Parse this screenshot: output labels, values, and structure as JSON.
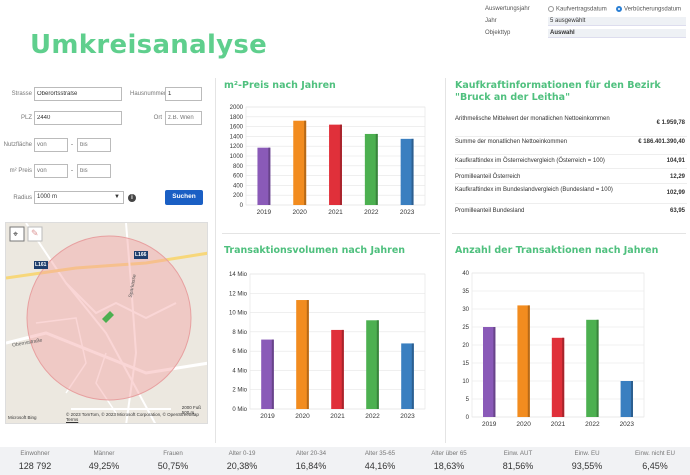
{
  "page": {
    "title": "Umkreisanalyse"
  },
  "filters": {
    "auswertungsjahr_label": "Auswertungsjahr",
    "option_kaufvertrag": "Kaufvertragsdatum",
    "option_verbuecherung": "Verbücherungsdatum",
    "selected_option": "Verbücherungsdatum",
    "jahr_label": "Jahr",
    "jahr_value": "5 ausgewählt",
    "objekttyp_label": "Objekttyp",
    "objekttyp_value": "Auswahl"
  },
  "form": {
    "strasse_label": "Strasse",
    "strasse_value": "Oberortsstraße",
    "hausnummer_label": "Hausnummer",
    "hausnummer_value": "1",
    "plz_label": "PLZ",
    "plz_value": "2440",
    "ort_label": "Ort",
    "ort_placeholder": "z.B. Wien",
    "nutzflaeche_label": "Nutzfläche",
    "preis_label": "m² Preis",
    "von_placeholder": "von",
    "bis_placeholder": "bis",
    "radius_label": "Radius",
    "radius_value": "1000 m",
    "search_label": "Suchen",
    "info_glyph": "i"
  },
  "map": {
    "road_labels": [
      "L161",
      "L166",
      "Obernsstraße",
      "Sparkasse"
    ],
    "copyright": "© 2023 TomTom, © 2023 Microsoft Corporation, © OpenStreetMap",
    "terms": "Terms",
    "scale_ft": "2000 Fuß",
    "scale_m": "500 m",
    "brand": "Microsoft Bing"
  },
  "panels": {
    "preis_title": "m²-Preis nach Jahren",
    "kaufkraft_title": "Kaufkraftinformationen für den Bezirk \"Bruck an der Leitha\"",
    "transaktionsvolumen_title": "Transaktionsvolumen nach Jahren",
    "anzahl_title": "Anzahl der Transaktionen nach Jahren"
  },
  "kaufkraft": [
    {
      "label": "Arithmelische Mittelwert der monatlichen Nettoeinkommen",
      "value": "€ 1.959,78"
    },
    {
      "label": "Summe der monatlichen Nettoeinkommen",
      "value": "€ 186.401.390,40"
    },
    {
      "label": "Kaufkraftindex im Österreichvergleich (Österreich = 100)",
      "value": "104,91"
    },
    {
      "label": "Promilleanteil Österreich",
      "value": "12,29"
    },
    {
      "label": "Kaufkraftindex im Bundeslandvergleich (Bundesland = 100)",
      "value": "102,99"
    },
    {
      "label": "Promilleanteil Bundesland",
      "value": "63,95"
    }
  ],
  "chart_data": [
    {
      "type": "bar",
      "title": "m²-Preis nach Jahren",
      "categories": [
        "2019",
        "2020",
        "2021",
        "2022",
        "2023"
      ],
      "values": [
        1170,
        1720,
        1640,
        1450,
        1350
      ],
      "ylim": [
        0,
        2000
      ],
      "yticks": [
        "0",
        "200",
        "400",
        "600",
        "800",
        "1000",
        "1200",
        "1400",
        "1600",
        "1800",
        "2000"
      ],
      "colors": [
        "#8a5ab8",
        "#f28c1f",
        "#e0303a",
        "#4cb050",
        "#3a7fc0"
      ],
      "grid": true
    },
    {
      "type": "bar",
      "title": "Transaktionsvolumen nach Jahren",
      "categories": [
        "2019",
        "2020",
        "2021",
        "2022",
        "2023"
      ],
      "values": [
        7.2,
        11.3,
        8.2,
        9.2,
        6.8
      ],
      "ylim": [
        0,
        14
      ],
      "yticks": [
        "0 Mio",
        "2 Mio",
        "4 Mio",
        "6 Mio",
        "8 Mio",
        "10 Mio",
        "12 Mio",
        "14 Mio"
      ],
      "colors": [
        "#8a5ab8",
        "#f28c1f",
        "#e0303a",
        "#4cb050",
        "#3a7fc0"
      ],
      "grid": true
    },
    {
      "type": "bar",
      "title": "Anzahl der Transaktionen nach Jahren",
      "categories": [
        "2019",
        "2020",
        "2021",
        "2022",
        "2023"
      ],
      "values": [
        25,
        31,
        22,
        27,
        10
      ],
      "ylim": [
        0,
        40
      ],
      "yticks": [
        "0",
        "5",
        "10",
        "15",
        "20",
        "25",
        "30",
        "35",
        "40"
      ],
      "colors": [
        "#8a5ab8",
        "#f28c1f",
        "#e0303a",
        "#4cb050",
        "#3a7fc0"
      ],
      "grid": true
    }
  ],
  "stats": [
    {
      "label": "Einwohner",
      "value": "128 792"
    },
    {
      "label": "Männer",
      "value": "49,25%"
    },
    {
      "label": "Frauen",
      "value": "50,75%"
    },
    {
      "label": "Alter 0-19",
      "value": "20,38%"
    },
    {
      "label": "Alter 20-34",
      "value": "16,84%"
    },
    {
      "label": "Alter 35-65",
      "value": "44,16%"
    },
    {
      "label": "Alter über 65",
      "value": "18,63%"
    },
    {
      "label": "Einw. AUT",
      "value": "81,56%"
    },
    {
      "label": "Einw. EU",
      "value": "93,55%"
    },
    {
      "label": "Einw. nicht EU",
      "value": "6,45%"
    }
  ]
}
